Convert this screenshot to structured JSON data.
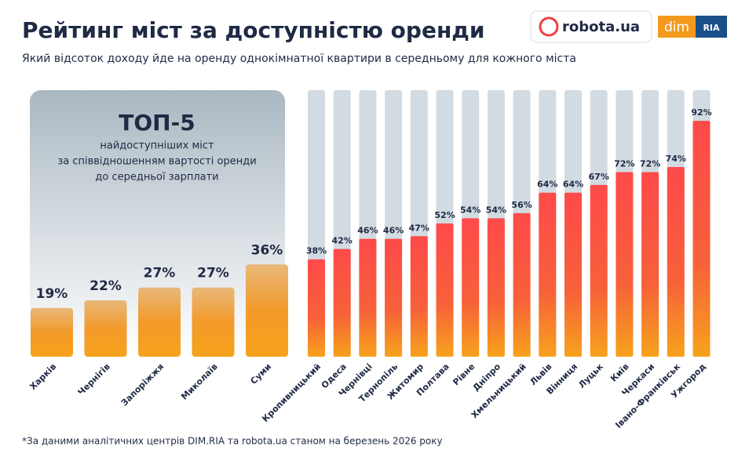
{
  "chart_data": {
    "type": "bar",
    "title": "Рейтинг міст за доступністю оренди",
    "subtitle": "Який відсоток доходу йде на оренду однокімнатної квартири в середньому для кожного міста",
    "footnote": "*За даними аналітичних центрів DIM.RIA та robota.ua станом на березень 2026 року",
    "top_box": {
      "title": "ТОП-5",
      "lines": [
        "найдоступніших міст",
        "за співвідношенням вартості оренди",
        "до середньої зарплати"
      ]
    },
    "logos": {
      "robota": "robota.ua",
      "dim": "dim",
      "ria": "RIA"
    },
    "categories": [
      "Харків",
      "Чернігів",
      "Запоріжжя",
      "Миколаїв",
      "Суми",
      "Кропивницький",
      "Одеса",
      "Чернівці",
      "Тернопіль",
      "Житомир",
      "Полтава",
      "Рівне",
      "Дніпро",
      "Хмельницький",
      "Львів",
      "Вінниця",
      "Луцьк",
      "Київ",
      "Черкаси",
      "Івано-Франківськ",
      "Ужгород"
    ],
    "values": [
      19,
      22,
      27,
      27,
      36,
      38,
      42,
      46,
      46,
      47,
      52,
      54,
      54,
      56,
      64,
      64,
      67,
      72,
      72,
      74,
      92
    ],
    "value_labels": [
      "19%",
      "22%",
      "27%",
      "27%",
      "36%",
      "38%",
      "42%",
      "46%",
      "46%",
      "47%",
      "52%",
      "54%",
      "54%",
      "56%",
      "64%",
      "64%",
      "67%",
      "72%",
      "72%",
      "74%",
      "92%"
    ]
  }
}
